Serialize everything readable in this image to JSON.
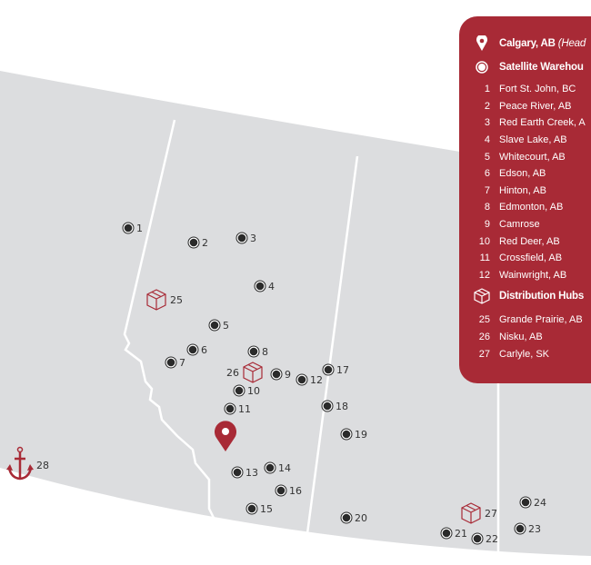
{
  "colors": {
    "brand": "#a82a36",
    "land": "#dcdddf",
    "border": "#ffffff",
    "marker": "#2a2a2a"
  },
  "legend": {
    "headquarters": {
      "icon": "map-pin-icon",
      "name": "Calgary, AB",
      "note": "(Head"
    },
    "satellite": {
      "icon": "target-dot-icon",
      "title": "Satellite Warehou",
      "items": [
        {
          "num": "1",
          "name": "Fort St. John, BC"
        },
        {
          "num": "2",
          "name": "Peace River, AB"
        },
        {
          "num": "3",
          "name": "Red Earth Creek, A"
        },
        {
          "num": "4",
          "name": "Slave Lake, AB"
        },
        {
          "num": "5",
          "name": "Whitecourt, AB"
        },
        {
          "num": "6",
          "name": "Edson, AB"
        },
        {
          "num": "7",
          "name": "Hinton, AB"
        },
        {
          "num": "8",
          "name": "Edmonton, AB"
        },
        {
          "num": "9",
          "name": "Camrose"
        },
        {
          "num": "10",
          "name": "Red Deer, AB"
        },
        {
          "num": "11",
          "name": "Crossfield, AB"
        },
        {
          "num": "12",
          "name": "Wainwright, AB"
        }
      ]
    },
    "hubs": {
      "icon": "box-icon",
      "title": "Distribution Hubs",
      "items": [
        {
          "num": "25",
          "name": "Grande Prairie, AB"
        },
        {
          "num": "26",
          "name": "Nisku, AB"
        },
        {
          "num": "27",
          "name": "Carlyle, SK"
        }
      ]
    }
  },
  "map": {
    "markers": [
      "1",
      "2",
      "3",
      "4",
      "5",
      "6",
      "7",
      "8",
      "9",
      "10",
      "11",
      "12",
      "13",
      "14",
      "15",
      "16",
      "17",
      "18",
      "19",
      "20",
      "21",
      "22",
      "23",
      "24"
    ],
    "hubs": [
      "25",
      "26",
      "27"
    ],
    "port": "28"
  }
}
